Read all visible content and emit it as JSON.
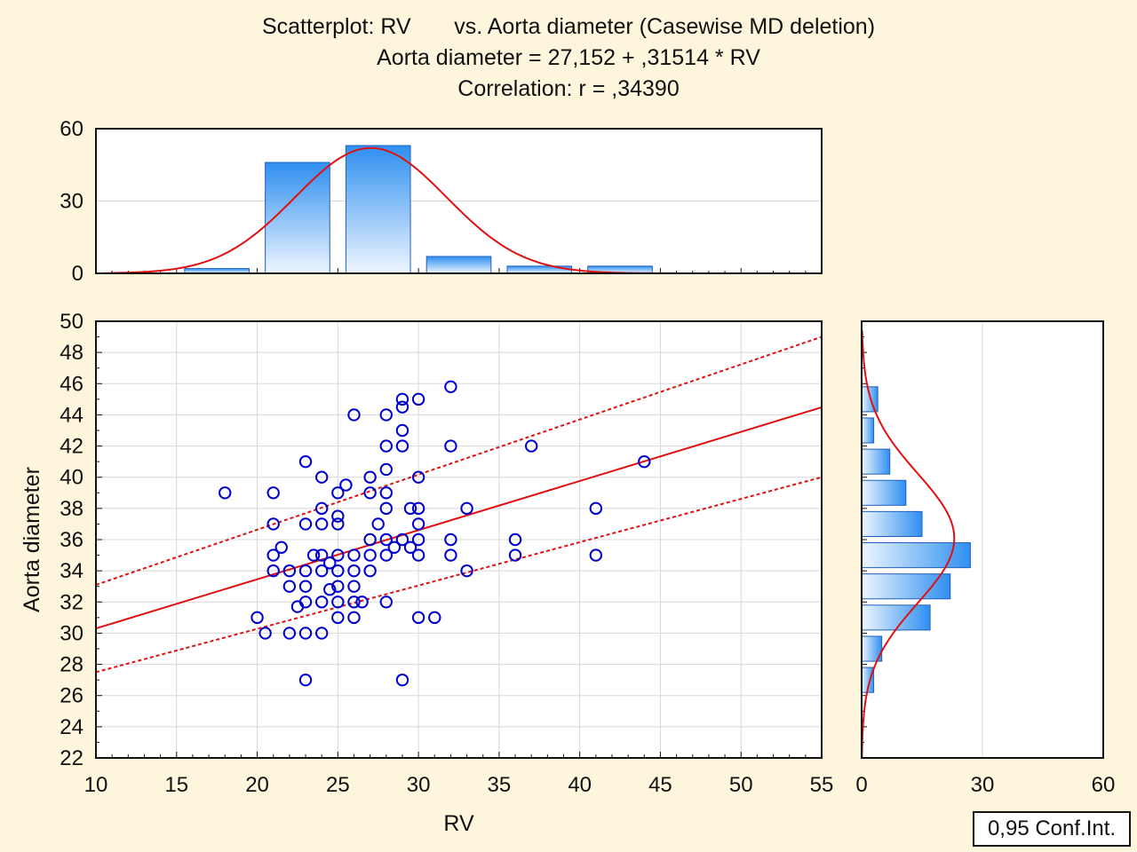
{
  "titles": {
    "line1": "Scatterplot: RV       vs. Aorta diameter (Casewise MD deletion)",
    "line2": "Aorta diameter = 27,152 + ,31514 * RV",
    "line3": "Correlation: r = ,34390"
  },
  "legend_label": "0,95 Conf.Int.",
  "colors": {
    "background": "#fdf5dc",
    "points": "#0000cc",
    "fit_line": "#e01010",
    "bar_fill_top": "#2f8ff0",
    "bar_fill_bottom": "#eef6ff",
    "bar_stroke": "#2060c0"
  },
  "chart_data": [
    {
      "type": "scatter",
      "xlabel": "RV",
      "ylabel": "Aorta diameter",
      "xlim": [
        10,
        55
      ],
      "ylim": [
        22,
        50
      ],
      "xticks": [
        10,
        15,
        20,
        25,
        30,
        35,
        40,
        45,
        50,
        55
      ],
      "yticks": [
        22,
        24,
        26,
        28,
        30,
        32,
        34,
        36,
        38,
        40,
        42,
        44,
        46,
        48,
        50
      ],
      "grid": true,
      "regression": {
        "intercept": 27.152,
        "slope": 0.31514
      },
      "confidence_band": {
        "level": 0.95,
        "lower": [
          [
            10,
            27.5
          ],
          [
            55,
            40.0
          ]
        ],
        "upper": [
          [
            10,
            33.1
          ],
          [
            55,
            49.0
          ]
        ]
      },
      "points": [
        [
          18,
          39
        ],
        [
          20,
          31
        ],
        [
          20.5,
          30
        ],
        [
          21,
          39
        ],
        [
          21,
          37
        ],
        [
          21,
          35
        ],
        [
          21,
          34
        ],
        [
          21.5,
          35.5
        ],
        [
          22,
          34
        ],
        [
          22,
          33
        ],
        [
          22,
          30
        ],
        [
          22.5,
          31.7
        ],
        [
          23,
          41
        ],
        [
          23,
          37
        ],
        [
          23,
          34
        ],
        [
          23,
          33
        ],
        [
          23,
          32
        ],
        [
          23,
          30
        ],
        [
          23,
          27
        ],
        [
          23.5,
          35
        ],
        [
          24,
          40
        ],
        [
          24,
          38
        ],
        [
          24,
          37
        ],
        [
          24,
          35
        ],
        [
          24,
          34
        ],
        [
          24,
          32
        ],
        [
          24,
          30
        ],
        [
          24.5,
          34.5
        ],
        [
          24.5,
          32.8
        ],
        [
          25,
          39
        ],
        [
          25,
          37.5
        ],
        [
          25,
          37
        ],
        [
          25,
          35
        ],
        [
          25,
          34
        ],
        [
          25,
          33
        ],
        [
          25,
          32
        ],
        [
          25,
          31
        ],
        [
          25.5,
          39.5
        ],
        [
          26,
          44
        ],
        [
          26,
          35
        ],
        [
          26,
          34
        ],
        [
          26,
          33
        ],
        [
          26,
          32
        ],
        [
          26,
          31
        ],
        [
          26.5,
          32
        ],
        [
          27,
          40
        ],
        [
          27,
          39
        ],
        [
          27,
          36
        ],
        [
          27,
          35
        ],
        [
          27,
          34
        ],
        [
          27.5,
          37
        ],
        [
          28,
          44
        ],
        [
          28,
          42
        ],
        [
          28,
          40.5
        ],
        [
          28,
          39
        ],
        [
          28,
          38
        ],
        [
          28,
          36
        ],
        [
          28,
          35
        ],
        [
          28,
          32
        ],
        [
          28.5,
          35.5
        ],
        [
          29,
          45
        ],
        [
          29,
          44.5
        ],
        [
          29,
          43
        ],
        [
          29,
          42
        ],
        [
          29,
          36
        ],
        [
          29,
          27
        ],
        [
          29.5,
          38
        ],
        [
          29.5,
          35.5
        ],
        [
          30,
          45
        ],
        [
          30,
          40
        ],
        [
          30,
          38
        ],
        [
          30,
          37
        ],
        [
          30,
          36
        ],
        [
          30,
          35
        ],
        [
          30,
          31
        ],
        [
          31,
          31
        ],
        [
          32,
          45.8
        ],
        [
          32,
          42
        ],
        [
          32,
          36
        ],
        [
          32,
          35
        ],
        [
          33,
          38
        ],
        [
          33,
          34
        ],
        [
          36,
          36
        ],
        [
          36,
          35
        ],
        [
          37,
          42
        ],
        [
          41,
          38
        ],
        [
          41,
          35
        ],
        [
          44,
          41
        ]
      ]
    },
    {
      "type": "bar",
      "title": "",
      "orientation": "vertical",
      "xlim": [
        10,
        55
      ],
      "ylim": [
        0,
        60
      ],
      "yticks": [
        0,
        30,
        60
      ],
      "bins": [
        [
          15,
          20
        ],
        [
          20,
          25
        ],
        [
          25,
          30
        ],
        [
          30,
          35
        ],
        [
          35,
          40
        ],
        [
          40,
          45
        ]
      ],
      "values": [
        2,
        46,
        53,
        7,
        3,
        3
      ],
      "fit_curve": "normal"
    },
    {
      "type": "bar",
      "title": "",
      "orientation": "horizontal",
      "ylim": [
        22,
        50
      ],
      "xlim": [
        0,
        60
      ],
      "xticks": [
        0,
        30,
        60
      ],
      "bins": [
        [
          26,
          28
        ],
        [
          28,
          30
        ],
        [
          30,
          32
        ],
        [
          32,
          34
        ],
        [
          34,
          36
        ],
        [
          36,
          38
        ],
        [
          38,
          40
        ],
        [
          40,
          42
        ],
        [
          42,
          44
        ],
        [
          44,
          46
        ]
      ],
      "values": [
        3,
        5,
        17,
        22,
        27,
        15,
        11,
        7,
        3,
        4
      ],
      "fit_curve": "normal"
    }
  ]
}
